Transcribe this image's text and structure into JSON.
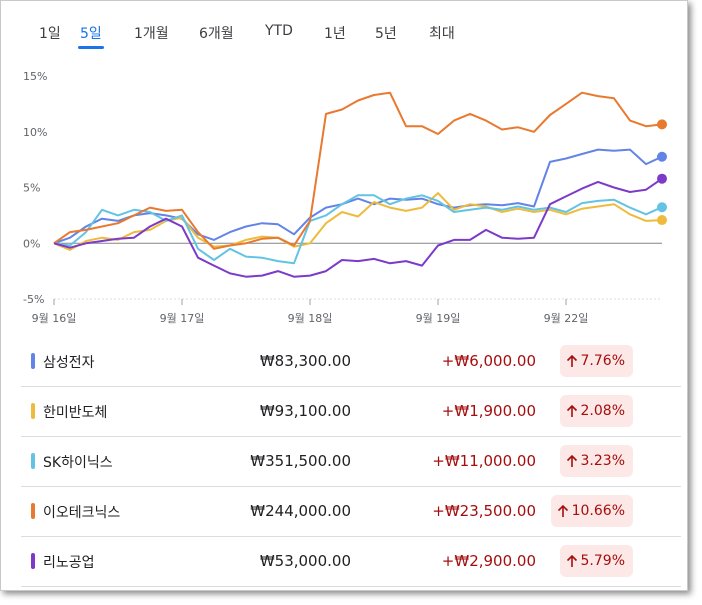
{
  "tabs": [
    "1일",
    "5일",
    "1개월",
    "6개월",
    "YTD",
    "1년",
    "5년",
    "최대"
  ],
  "selected_tab": 1,
  "chart_data": {
    "type": "line",
    "categories": [
      "9월 16일",
      null,
      null,
      null,
      null,
      null,
      null,
      null,
      "9월 17일",
      null,
      null,
      null,
      null,
      null,
      null,
      null,
      "9월 18일",
      null,
      null,
      null,
      null,
      null,
      null,
      null,
      "9월 19일",
      null,
      null,
      null,
      null,
      null,
      null,
      null,
      "9월 22일",
      null,
      null,
      null,
      null,
      null,
      null
    ],
    "ylim": [
      -5,
      15
    ],
    "yticks": [
      {
        "value": 15,
        "label": "15%"
      },
      {
        "value": 10,
        "label": "10%"
      },
      {
        "value": 5,
        "label": "5%"
      },
      {
        "value": 0,
        "label": "0%"
      },
      {
        "value": -5,
        "label": "-5%"
      }
    ],
    "series": [
      {
        "name": "삼성전자",
        "color": "#6384e6",
        "values": [
          0,
          0.5,
          1.5,
          2.2,
          2.0,
          2.5,
          2.7,
          2.5,
          2.2,
          0.8,
          0.3,
          1.0,
          1.5,
          1.8,
          1.7,
          0.8,
          2.3,
          3.2,
          3.5,
          4.0,
          3.5,
          4.0,
          3.9,
          4.0,
          3.5,
          3.2,
          3.4,
          3.5,
          3.4,
          3.6,
          3.3,
          7.3,
          7.6,
          8.0,
          8.4,
          8.3,
          8.4,
          7.1,
          7.76
        ]
      },
      {
        "name": "한미반도체",
        "color": "#eebb3c",
        "values": [
          0,
          -0.6,
          0.2,
          0.5,
          0.3,
          1.0,
          1.2,
          2.0,
          2.3,
          0.5,
          -0.3,
          -0.2,
          0.3,
          0.6,
          0.5,
          -0.3,
          0.0,
          1.8,
          2.8,
          2.4,
          3.7,
          3.2,
          2.9,
          3.2,
          4.5,
          3.0,
          3.5,
          3.3,
          2.8,
          3.1,
          2.8,
          3.0,
          2.6,
          3.1,
          3.3,
          3.5,
          2.6,
          2.0,
          2.08
        ]
      },
      {
        "name": "SK하이닉스",
        "color": "#62c3e3",
        "values": [
          0,
          -0.2,
          1.0,
          3.0,
          2.5,
          3.0,
          2.8,
          2.0,
          2.5,
          -0.5,
          -1.5,
          -0.5,
          -1.2,
          -1.3,
          -1.6,
          -1.8,
          2.0,
          2.5,
          3.5,
          4.3,
          4.3,
          3.5,
          4.0,
          4.3,
          3.8,
          2.8,
          3.0,
          3.2,
          3.0,
          3.3,
          3.0,
          3.2,
          2.8,
          3.6,
          3.8,
          3.9,
          3.2,
          2.6,
          3.23
        ]
      },
      {
        "name": "이오테크닉스",
        "color": "#e8792f",
        "values": [
          0,
          1.0,
          1.2,
          1.5,
          1.8,
          2.5,
          3.2,
          2.9,
          3.0,
          1.0,
          -0.5,
          -0.2,
          0.0,
          0.4,
          0.5,
          -0.2,
          2.0,
          11.6,
          12.0,
          12.8,
          13.3,
          13.5,
          10.5,
          10.5,
          9.8,
          11.0,
          11.6,
          11.0,
          10.2,
          10.4,
          10.0,
          11.5,
          12.5,
          13.5,
          13.2,
          13.0,
          11.0,
          10.5,
          10.66
        ]
      },
      {
        "name": "리노공업",
        "color": "#7c3ac9",
        "values": [
          0,
          -0.4,
          0.0,
          0.2,
          0.4,
          0.5,
          1.5,
          2.2,
          1.5,
          -1.3,
          -2.0,
          -2.7,
          -3.0,
          -2.9,
          -2.5,
          -3.0,
          -2.9,
          -2.5,
          -1.5,
          -1.6,
          -1.4,
          -1.8,
          -1.6,
          -2.0,
          -0.2,
          0.3,
          0.3,
          1.2,
          0.5,
          0.4,
          0.5,
          3.5,
          4.2,
          4.9,
          5.5,
          5.0,
          4.6,
          4.8,
          5.79
        ]
      }
    ]
  },
  "rows": [
    {
      "name": "삼성전자",
      "price": "₩83,300.00",
      "change": "+₩6,000.00",
      "percent": "7.76%"
    },
    {
      "name": "한미반도체",
      "price": "₩93,100.00",
      "change": "+₩1,900.00",
      "percent": "2.08%"
    },
    {
      "name": "SK하이닉스",
      "price": "₩351,500.00",
      "change": "+₩11,000.00",
      "percent": "3.23%"
    },
    {
      "name": "이오테크닉스",
      "price": "₩244,000.00",
      "change": "+₩23,500.00",
      "percent": "10.66%"
    },
    {
      "name": "리노공업",
      "price": "₩53,000.00",
      "change": "+₩2,900.00",
      "percent": "5.79%"
    }
  ]
}
